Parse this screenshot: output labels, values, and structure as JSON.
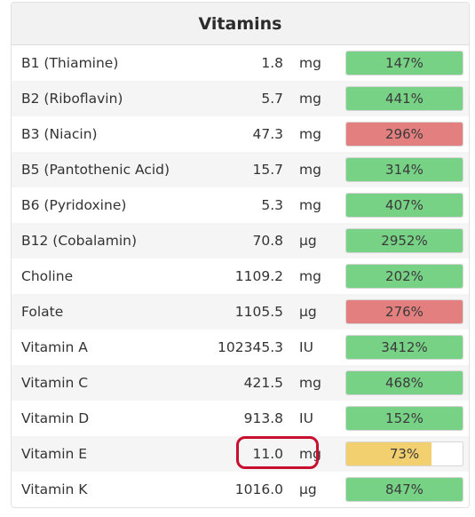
{
  "panel": {
    "title": "Vitamins"
  },
  "colors": {
    "good": "#77d286",
    "high": "#e47f7f",
    "low": "#f2cf6f"
  },
  "rows": [
    {
      "name": "B1 (Thiamine)",
      "amount": "1.8",
      "unit": "mg",
      "percent_label": "147%",
      "percent": 147,
      "status": "good"
    },
    {
      "name": "B2 (Riboflavin)",
      "amount": "5.7",
      "unit": "mg",
      "percent_label": "441%",
      "percent": 441,
      "status": "good"
    },
    {
      "name": "B3 (Niacin)",
      "amount": "47.3",
      "unit": "mg",
      "percent_label": "296%",
      "percent": 296,
      "status": "high"
    },
    {
      "name": "B5 (Pantothenic Acid)",
      "amount": "15.7",
      "unit": "mg",
      "percent_label": "314%",
      "percent": 314,
      "status": "good"
    },
    {
      "name": "B6 (Pyridoxine)",
      "amount": "5.3",
      "unit": "mg",
      "percent_label": "407%",
      "percent": 407,
      "status": "good"
    },
    {
      "name": "B12 (Cobalamin)",
      "amount": "70.8",
      "unit": "µg",
      "percent_label": "2952%",
      "percent": 2952,
      "status": "good"
    },
    {
      "name": "Choline",
      "amount": "1109.2",
      "unit": "mg",
      "percent_label": "202%",
      "percent": 202,
      "status": "good"
    },
    {
      "name": "Folate",
      "amount": "1105.5",
      "unit": "µg",
      "percent_label": "276%",
      "percent": 276,
      "status": "high"
    },
    {
      "name": "Vitamin A",
      "amount": "102345.3",
      "unit": "IU",
      "percent_label": "3412%",
      "percent": 3412,
      "status": "good"
    },
    {
      "name": "Vitamin C",
      "amount": "421.5",
      "unit": "mg",
      "percent_label": "468%",
      "percent": 468,
      "status": "good"
    },
    {
      "name": "Vitamin D",
      "amount": "913.8",
      "unit": "IU",
      "percent_label": "152%",
      "percent": 152,
      "status": "good"
    },
    {
      "name": "Vitamin E",
      "amount": "11.0",
      "unit": "mg",
      "percent_label": "73%",
      "percent": 73,
      "status": "low"
    },
    {
      "name": "Vitamin K",
      "amount": "1016.0",
      "unit": "µg",
      "percent_label": "847%",
      "percent": 847,
      "status": "good"
    }
  ]
}
